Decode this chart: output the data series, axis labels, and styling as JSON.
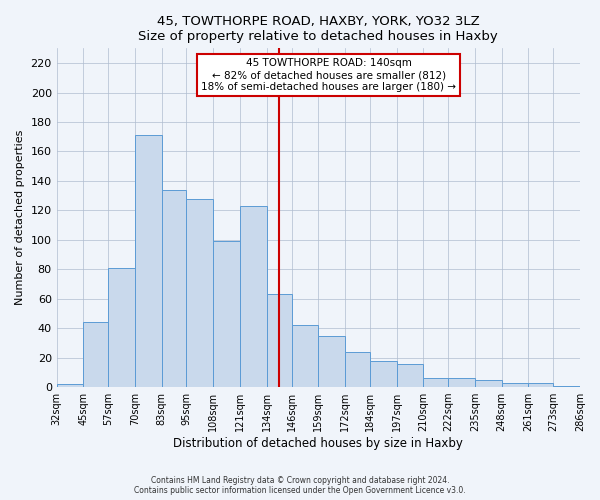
{
  "title": "45, TOWTHORPE ROAD, HAXBY, YORK, YO32 3LZ",
  "subtitle": "Size of property relative to detached houses in Haxby",
  "xlabel": "Distribution of detached houses by size in Haxby",
  "ylabel": "Number of detached properties",
  "footer_line1": "Contains HM Land Registry data © Crown copyright and database right 2024.",
  "footer_line2": "Contains public sector information licensed under the Open Government Licence v3.0.",
  "bin_labels": [
    "32sqm",
    "45sqm",
    "57sqm",
    "70sqm",
    "83sqm",
    "95sqm",
    "108sqm",
    "121sqm",
    "134sqm",
    "146sqm",
    "159sqm",
    "172sqm",
    "184sqm",
    "197sqm",
    "210sqm",
    "222sqm",
    "235sqm",
    "248sqm",
    "261sqm",
    "273sqm",
    "286sqm"
  ],
  "bar_values": [
    2,
    44,
    81,
    171,
    134,
    128,
    99,
    123,
    63,
    42,
    35,
    24,
    18,
    16,
    6,
    6,
    5,
    3,
    3,
    1
  ],
  "bin_edges": [
    32,
    45,
    57,
    70,
    83,
    95,
    108,
    121,
    134,
    146,
    159,
    172,
    184,
    197,
    210,
    222,
    235,
    248,
    261,
    273,
    286
  ],
  "property_size": 140,
  "bar_color": "#c9d9ec",
  "bar_edge_color": "#5b9bd5",
  "annotation_title": "45 TOWTHORPE ROAD: 140sqm",
  "annotation_line1": "← 82% of detached houses are smaller (812)",
  "annotation_line2": "18% of semi-detached houses are larger (180) →",
  "annotation_box_color": "#ffffff",
  "annotation_box_edge_color": "#cc0000",
  "vline_color": "#cc0000",
  "ylim": [
    0,
    230
  ],
  "yticks": [
    0,
    20,
    40,
    60,
    80,
    100,
    120,
    140,
    160,
    180,
    200,
    220
  ],
  "background_color": "#f0f4fa"
}
